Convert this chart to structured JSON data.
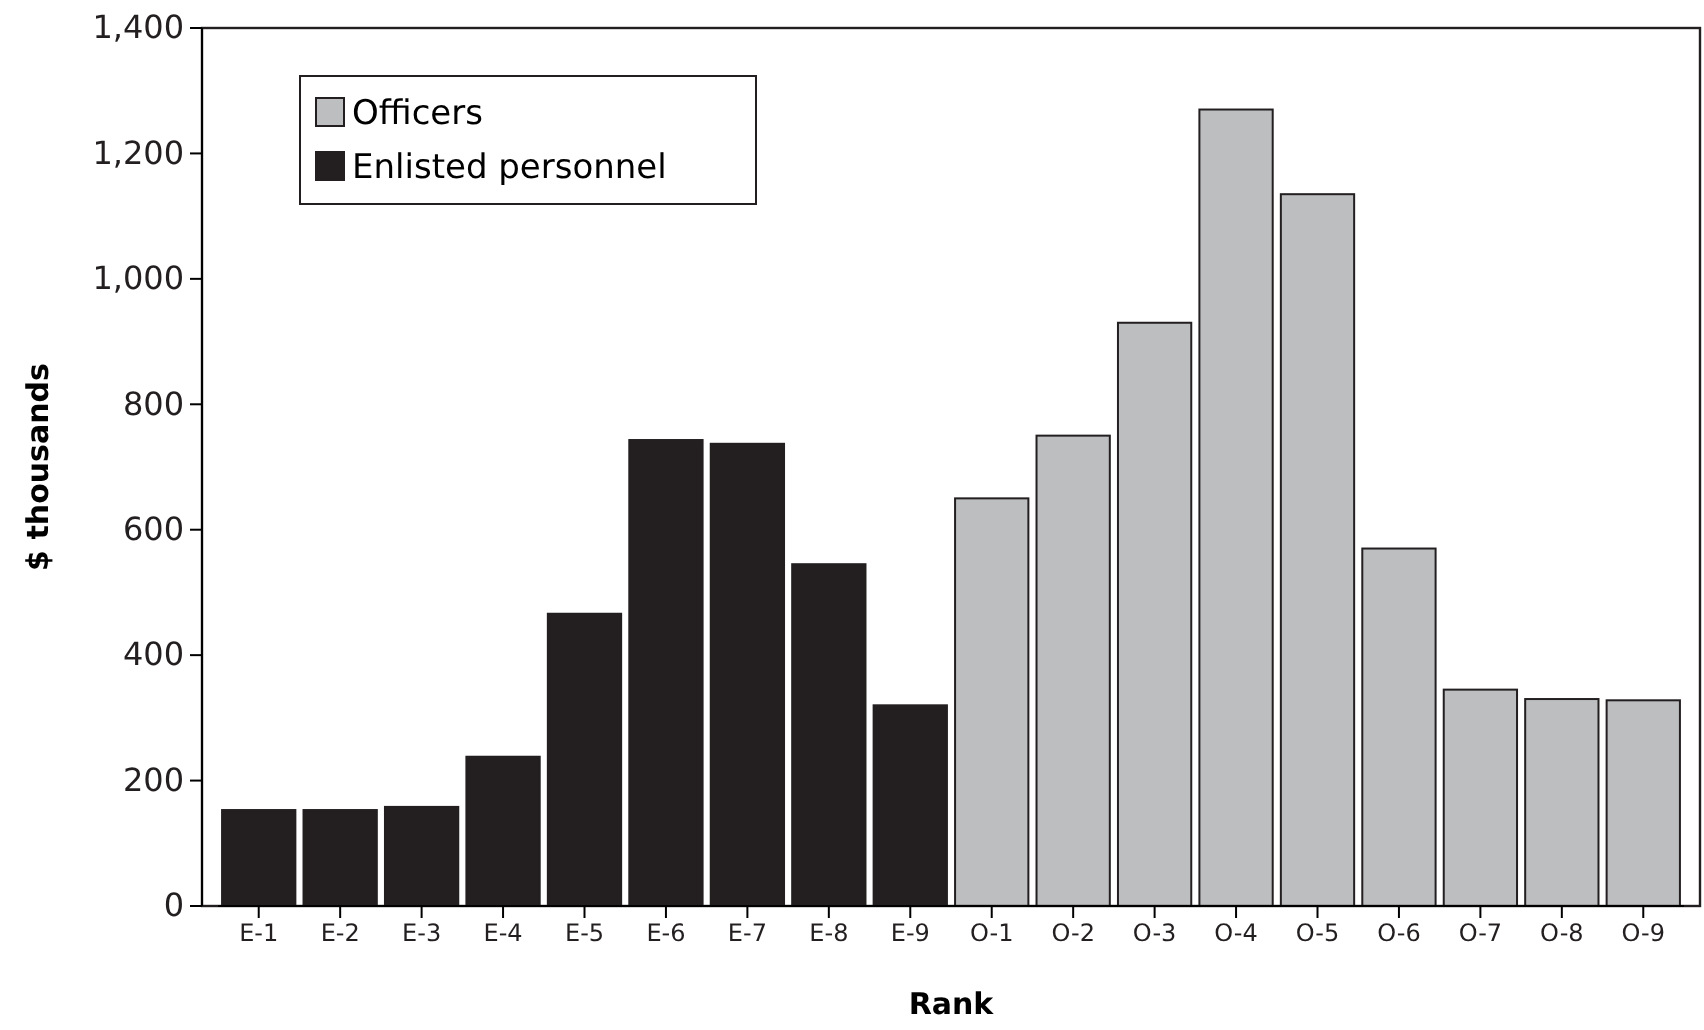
{
  "chart_data": {
    "type": "bar",
    "xlabel": "Rank",
    "ylabel": "$ thousands",
    "categories": [
      "E-1",
      "E-2",
      "E-3",
      "E-4",
      "E-5",
      "E-6",
      "E-7",
      "E-8",
      "E-9",
      "O-1",
      "O-2",
      "O-3",
      "O-4",
      "O-5",
      "O-6",
      "O-7",
      "O-8",
      "O-9"
    ],
    "series": [
      {
        "name": "Officers",
        "color": "#bcbec0",
        "values": [
          null,
          null,
          null,
          null,
          null,
          null,
          null,
          null,
          null,
          650,
          750,
          930,
          1270,
          1135,
          570,
          345,
          330,
          328
        ]
      },
      {
        "name": "Enlisted personnel",
        "color": "#231f20",
        "values": [
          153,
          153,
          158,
          238,
          466,
          743,
          737,
          545,
          320,
          null,
          null,
          null,
          null,
          null,
          null,
          null,
          null,
          null
        ]
      }
    ],
    "stacked": true,
    "ylim": [
      0,
      1400
    ],
    "yticks": [
      0,
      200,
      400,
      600,
      800,
      {
        "value": 1000,
        "label": "1,000"
      },
      {
        "value": 1200,
        "label": "1,200"
      },
      {
        "value": 1400,
        "label": "1,400"
      }
    ],
    "grid": false,
    "legend": "top left"
  }
}
